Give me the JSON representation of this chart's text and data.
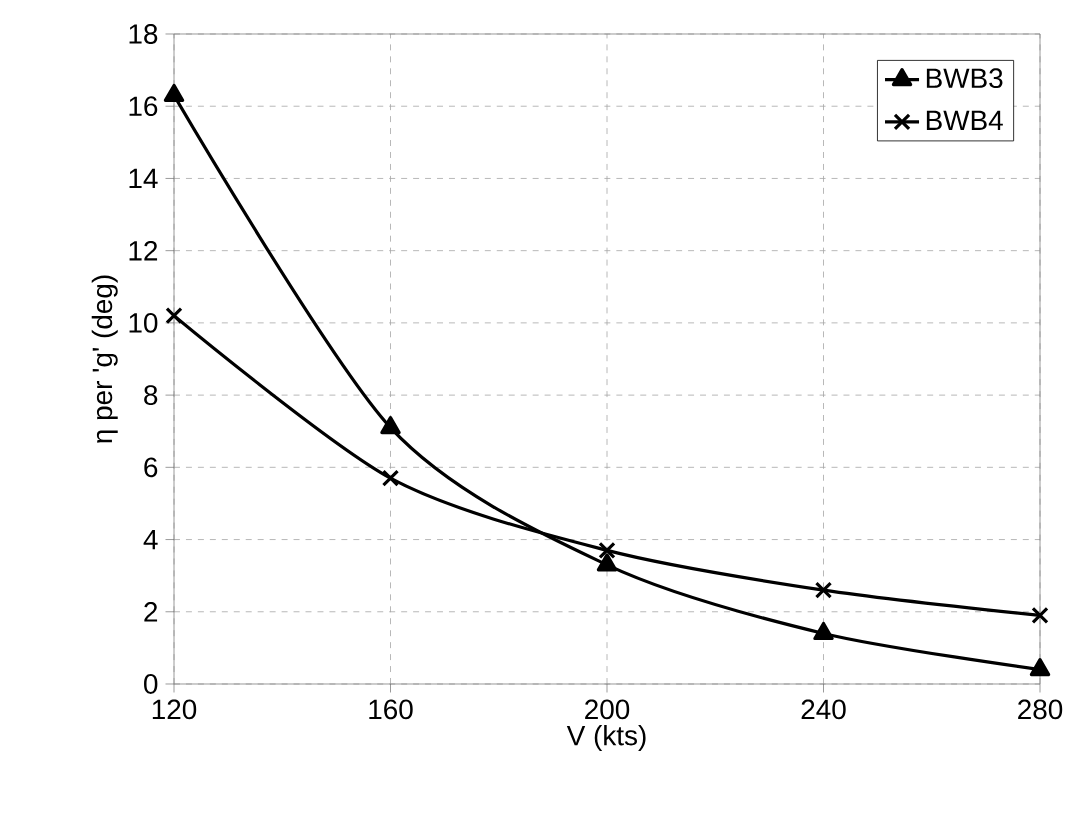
{
  "chart_data": {
    "type": "line",
    "xlabel": "V (kts)",
    "ylabel": "η per 'g' (deg)",
    "x": [
      120,
      160,
      200,
      240,
      280
    ],
    "series": [
      {
        "name": "BWB3",
        "color": "#000000",
        "marker": "triangle",
        "values": [
          16.3,
          7.1,
          3.3,
          1.4,
          0.4
        ]
      },
      {
        "name": "BWB4",
        "color": "#000000",
        "marker": "cross",
        "values": [
          10.2,
          5.7,
          3.7,
          2.6,
          1.9
        ]
      }
    ],
    "xlim": [
      120,
      280
    ],
    "xticks": [
      120,
      160,
      200,
      240,
      280
    ],
    "ylim": [
      0,
      18
    ],
    "yticks": [
      0,
      2,
      4,
      6,
      8,
      10,
      12,
      14,
      16,
      18
    ],
    "grid": true,
    "legend": "top right",
    "line_style": "solid"
  }
}
